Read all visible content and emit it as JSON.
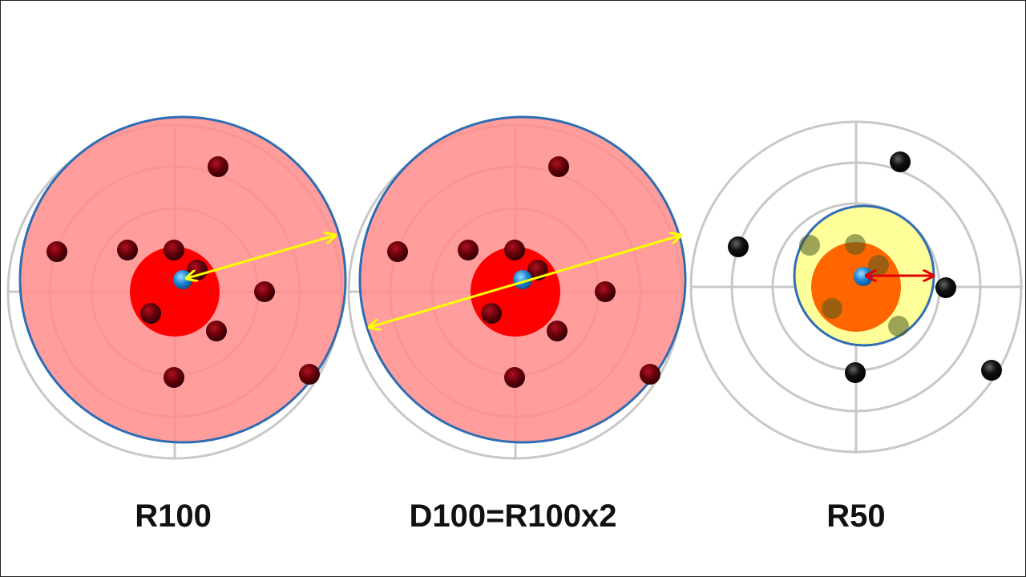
{
  "labels": {
    "left": "R100",
    "middle": "D100=R100x2",
    "right": "R50"
  },
  "colors": {
    "ring": "#c8c8c8",
    "big_circle_fill": "#ff8c8c",
    "big_circle_stroke": "#2e6db3",
    "inner_red": "#ff0000",
    "hole_dark": "#5a0008",
    "hole_black": "#000000",
    "center_blue": "#1e88d6",
    "arrow_yellow": "#ffff00",
    "arrow_red": "#e00000",
    "r50_fill": "#ffff99",
    "r50_inner": "#ff6600"
  }
}
